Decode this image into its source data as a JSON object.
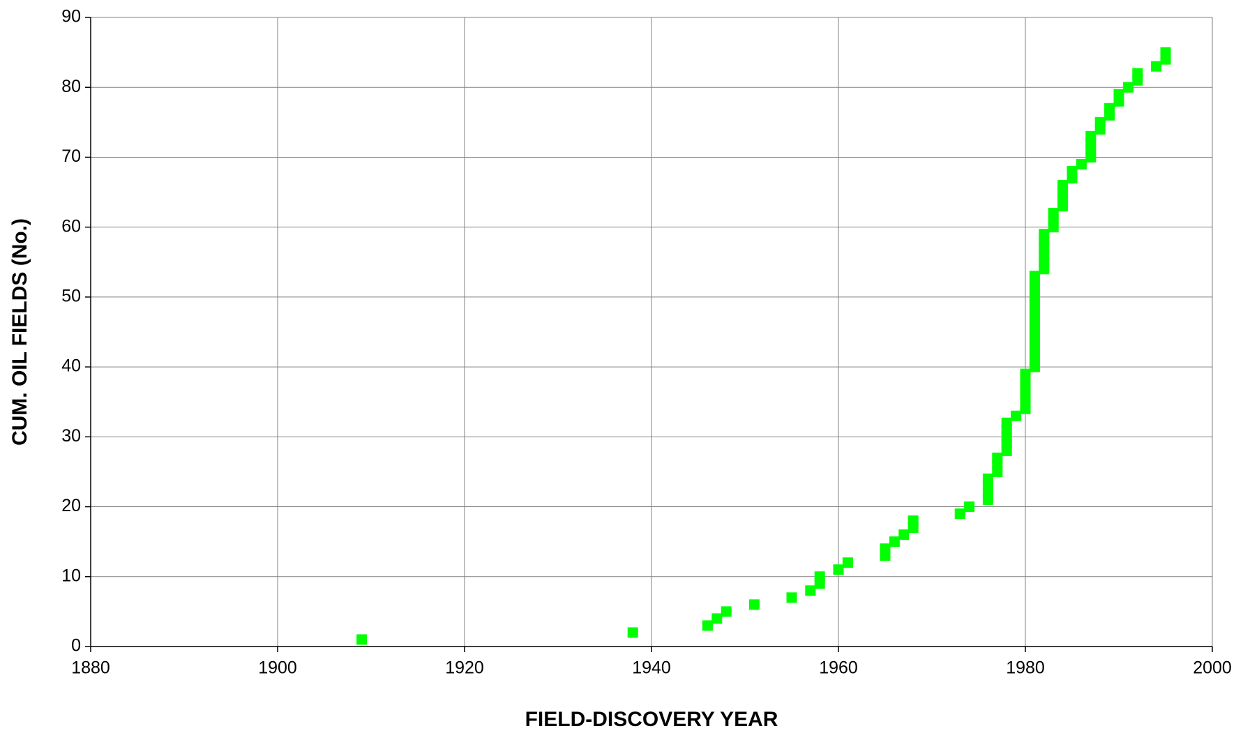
{
  "chart_data": {
    "type": "scatter",
    "x_label": "FIELD-DISCOVERY YEAR",
    "y_label": "CUM. OIL FIELDS (No.)",
    "xlim": [
      1880,
      2000
    ],
    "xticks": [
      1880,
      1900,
      1920,
      1940,
      1960,
      1980,
      2000
    ],
    "ylim": [
      0,
      90
    ],
    "yticks": [
      0,
      10,
      20,
      30,
      40,
      50,
      60,
      70,
      80,
      90
    ],
    "grid": true,
    "color": "#00ff00",
    "x": [
      1909,
      1938,
      1946,
      1947,
      1948,
      1951,
      1955,
      1957,
      1958,
      1958,
      1960,
      1961,
      1965,
      1965,
      1966,
      1967,
      1968,
      1968,
      1973,
      1974,
      1976,
      1976,
      1976,
      1976,
      1977,
      1977,
      1977,
      1978,
      1978,
      1978,
      1978,
      1978,
      1979,
      1980,
      1980,
      1980,
      1980,
      1980,
      1980,
      1981,
      1981,
      1981,
      1981,
      1981,
      1981,
      1981,
      1981,
      1981,
      1981,
      1981,
      1981,
      1981,
      1981,
      1982,
      1982,
      1982,
      1982,
      1982,
      1982,
      1983,
      1983,
      1983,
      1984,
      1984,
      1984,
      1984,
      1985,
      1985,
      1986,
      1987,
      1987,
      1987,
      1987,
      1988,
      1988,
      1989,
      1989,
      1990,
      1990,
      1991,
      1992,
      1992,
      1994,
      1995,
      1995
    ],
    "values": [
      1,
      2,
      3,
      4,
      5,
      6,
      7,
      8,
      9,
      10,
      11,
      12,
      13,
      14,
      15,
      16,
      17,
      18,
      19,
      20,
      21,
      22,
      23,
      24,
      25,
      26,
      27,
      28,
      29,
      30,
      31,
      32,
      33,
      34,
      35,
      36,
      37,
      38,
      39,
      40,
      41,
      42,
      43,
      44,
      45,
      46,
      47,
      48,
      49,
      50,
      51,
      52,
      53,
      54,
      55,
      56,
      57,
      58,
      59,
      60,
      61,
      62,
      63,
      64,
      65,
      66,
      67,
      68,
      69,
      70,
      71,
      72,
      73,
      74,
      75,
      76,
      77,
      78,
      79,
      80,
      81,
      82,
      83,
      84,
      85
    ]
  }
}
